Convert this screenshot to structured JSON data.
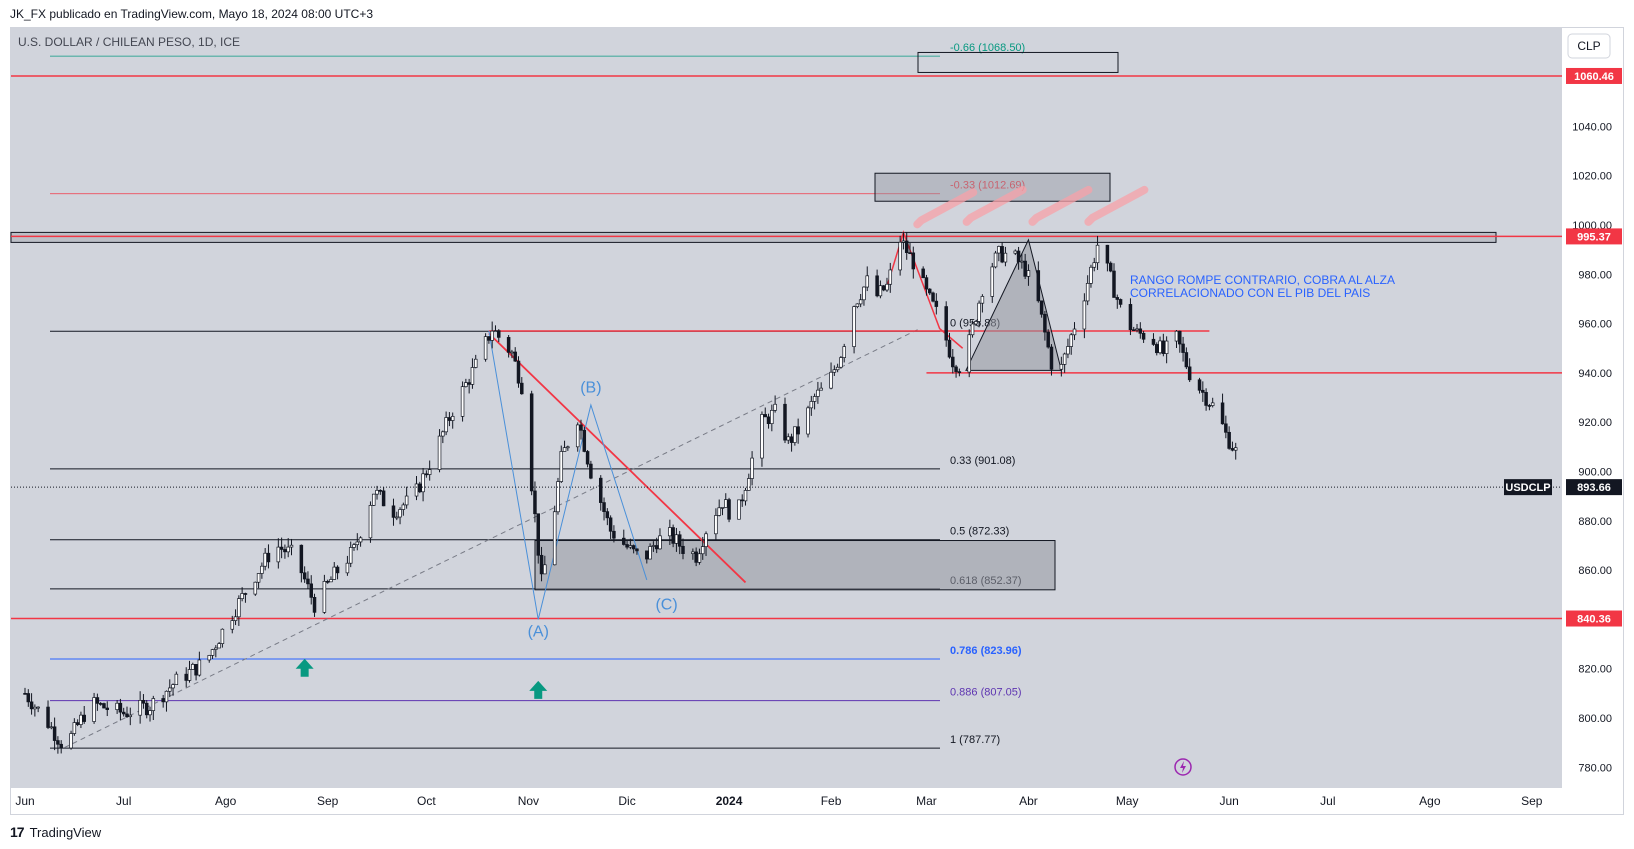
{
  "header": {
    "published_by": "JK_FX publicado en TradingView.com, Mayo 18, 2024 08:00 UTC+3"
  },
  "footer": {
    "logo_text": "17",
    "brand": "TradingView"
  },
  "colors": {
    "chart_bg": "#d1d4dc",
    "axis_bg": "#ffffff",
    "red": "#f23645",
    "blue": "#2962ff",
    "purple": "#5e35b1",
    "wave_blue": "#4a90d9",
    "green_arrow": "#089981",
    "gray_box": "#9598a1"
  },
  "chart_data": {
    "type": "candlestick",
    "title": "U.S. DOLLAR / CHILEAN PESO, 1D, ICE",
    "symbol": "USDCLP",
    "currency_button": "CLP",
    "last_price": 893.66,
    "last_price_label": "893.66",
    "ylim": [
      770,
      1080
    ],
    "y_ticks": [
      780,
      800,
      820,
      840,
      860,
      880,
      900,
      920,
      940,
      960,
      980,
      1000,
      1020,
      1040
    ],
    "y_tick_labels": [
      "780.00",
      "800.00",
      "820.00",
      "840.00",
      "860.00",
      "880.00",
      "900.00",
      "920.00",
      "940.00",
      "960.00",
      "980.00",
      "1000.00",
      "1020.00",
      "1040.00"
    ],
    "x_labels": [
      {
        "label": "Jun",
        "day": 0
      },
      {
        "label": "Jul",
        "day": 30
      },
      {
        "label": "Ago",
        "day": 61
      },
      {
        "label": "Sep",
        "day": 92
      },
      {
        "label": "Oct",
        "day": 122
      },
      {
        "label": "Nov",
        "day": 153
      },
      {
        "label": "Dic",
        "day": 183
      },
      {
        "label": "2024",
        "day": 214
      },
      {
        "label": "Feb",
        "day": 245
      },
      {
        "label": "Mar",
        "day": 274
      },
      {
        "label": "Abr",
        "day": 305
      },
      {
        "label": "May",
        "day": 335
      },
      {
        "label": "Jun",
        "day": 366
      },
      {
        "label": "Jul",
        "day": 396
      },
      {
        "label": "Ago",
        "day": 427
      },
      {
        "label": "Sep",
        "day": 458
      }
    ],
    "price_path": [
      [
        0,
        810
      ],
      [
        6,
        800
      ],
      [
        12,
        788
      ],
      [
        20,
        806
      ],
      [
        30,
        802
      ],
      [
        38,
        805
      ],
      [
        46,
        815
      ],
      [
        55,
        823
      ],
      [
        62,
        840
      ],
      [
        70,
        858
      ],
      [
        76,
        870
      ],
      [
        82,
        866
      ],
      [
        88,
        846
      ],
      [
        94,
        858
      ],
      [
        100,
        868
      ],
      [
        106,
        892
      ],
      [
        112,
        884
      ],
      [
        118,
        889
      ],
      [
        124,
        906
      ],
      [
        130,
        925
      ],
      [
        137,
        943
      ],
      [
        142,
        958
      ],
      [
        148,
        948
      ],
      [
        151,
        935
      ],
      [
        154,
        895
      ],
      [
        157,
        855
      ],
      [
        160,
        875
      ],
      [
        163,
        905
      ],
      [
        168,
        922
      ],
      [
        172,
        900
      ],
      [
        178,
        876
      ],
      [
        184,
        868
      ],
      [
        188,
        864
      ],
      [
        192,
        872
      ],
      [
        196,
        874
      ],
      [
        200,
        869
      ],
      [
        204,
        866
      ],
      [
        208,
        880
      ],
      [
        212,
        888
      ],
      [
        216,
        880
      ],
      [
        220,
        900
      ],
      [
        224,
        920
      ],
      [
        228,
        924
      ],
      [
        232,
        912
      ],
      [
        236,
        918
      ],
      [
        240,
        930
      ],
      [
        244,
        935
      ],
      [
        248,
        948
      ],
      [
        252,
        968
      ],
      [
        256,
        977
      ],
      [
        258,
        970
      ],
      [
        262,
        975
      ],
      [
        266,
        994
      ],
      [
        270,
        985
      ],
      [
        274,
        972
      ],
      [
        278,
        962
      ],
      [
        282,
        945
      ],
      [
        285,
        942
      ],
      [
        288,
        958
      ],
      [
        292,
        980
      ],
      [
        296,
        988
      ],
      [
        300,
        988
      ],
      [
        304,
        982
      ],
      [
        308,
        968
      ],
      [
        312,
        944
      ],
      [
        315,
        942
      ],
      [
        318,
        955
      ],
      [
        322,
        972
      ],
      [
        326,
        992
      ],
      [
        330,
        978
      ],
      [
        334,
        962
      ],
      [
        338,
        956
      ],
      [
        342,
        955
      ],
      [
        346,
        948
      ],
      [
        350,
        954
      ],
      [
        354,
        940
      ],
      [
        358,
        932
      ],
      [
        362,
        925
      ],
      [
        365,
        915
      ],
      [
        368,
        908
      ],
      [
        370,
        894
      ]
    ],
    "levels": [
      {
        "name": "fib-minus-0.66",
        "label": "-0.66 (1068.50)",
        "price": 1068.5,
        "color": "#089981"
      },
      {
        "name": "fib-minus-0.33",
        "label": "-0.33 (1012.69)",
        "price": 1012.69,
        "color": "#f23645"
      },
      {
        "name": "fib-0.236",
        "label": "0 (956.88)",
        "price": 956.88,
        "color": "#131722"
      },
      {
        "name": "fib-0.33",
        "label": "0.33 (901.08)",
        "price": 901.08,
        "color": "#131722"
      },
      {
        "name": "fib-0.5",
        "label": "0.5 (872.33)",
        "price": 872.33,
        "color": "#131722"
      },
      {
        "name": "fib-0.618",
        "label": "0.618 (852.37)",
        "price": 852.37,
        "color": "#131722"
      },
      {
        "name": "fib-0.786",
        "label": "0.786 (823.96)",
        "price": 823.96,
        "color": "#2962ff"
      },
      {
        "name": "fib-0.886",
        "label": "0.886 (807.05)",
        "price": 807.05,
        "color": "#5e35b1"
      },
      {
        "name": "fib-1",
        "label": "1 (787.77)",
        "price": 787.77,
        "color": "#131722"
      }
    ],
    "horizontal_lines": [
      {
        "name": "resistance-1060",
        "price": 1060.46,
        "label": "1060.46"
      },
      {
        "name": "resistance-995",
        "price": 995.37,
        "label": "995.37"
      },
      {
        "name": "support-840",
        "price": 840.36,
        "label": "840.36"
      }
    ],
    "wave_labels": [
      {
        "label": "(A)",
        "day": 156,
        "price": 833
      },
      {
        "label": "(B)",
        "day": 172,
        "price": 932
      },
      {
        "label": "(C)",
        "day": 195,
        "price": 844
      }
    ],
    "annotation": {
      "line1": "RANGO ROMPE CONTRARIO, COBRA AL ALZA",
      "line2": "CORRELACIONADO CON EL PIB DEL PAIS"
    }
  }
}
